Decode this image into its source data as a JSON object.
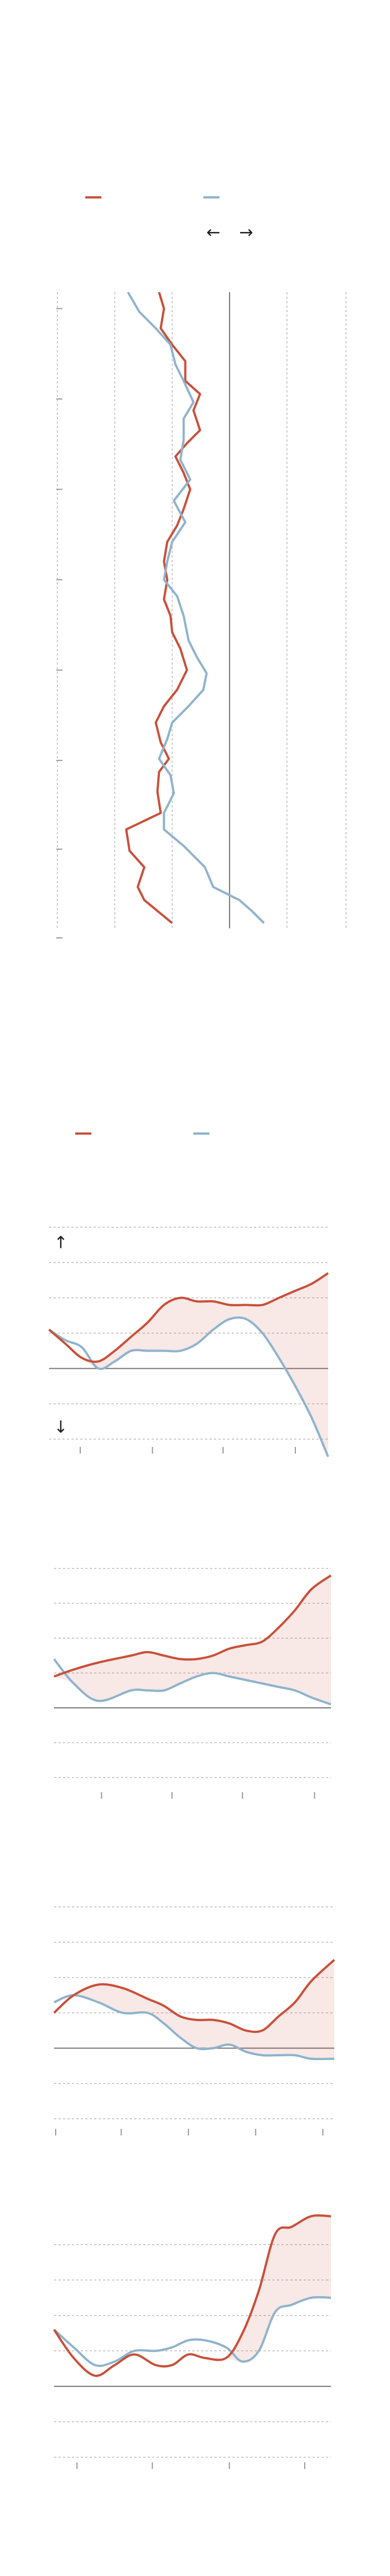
{
  "chart_data": [
    {
      "type": "line",
      "orientation": "vertical",
      "annotations": [
        "←",
        "→"
      ],
      "xlim": [
        -105,
        71
      ],
      "xticks": [
        -105,
        -70,
        -35,
        0,
        35,
        71
      ],
      "ylim": [
        178,
        572
      ],
      "yticks": [
        188,
        243,
        298,
        353,
        408,
        463,
        517,
        571
      ],
      "grid": true,
      "series": [
        {
          "color": "#c8503a",
          "values": [
            -43,
            -40,
            -42,
            -35,
            -27,
            -27,
            -18,
            -22,
            -18,
            -26,
            -33,
            -28,
            -24,
            -28,
            -32,
            -38,
            -40,
            -38,
            -40,
            -36,
            -35,
            -30,
            -26,
            -32,
            -40,
            -45,
            -42,
            -37,
            -43,
            -44,
            -42,
            -63,
            -61,
            -52,
            -56,
            -52,
            -35
          ],
          "y": [
            178,
            188,
            200,
            210,
            220,
            232,
            240,
            250,
            262,
            270,
            278,
            288,
            298,
            310,
            320,
            330,
            342,
            353,
            365,
            375,
            385,
            395,
            408,
            420,
            430,
            440,
            452,
            462,
            470,
            482,
            495,
            505,
            518,
            528,
            540,
            548,
            562
          ]
        },
        {
          "color": "#8fb3cc",
          "values": [
            -62,
            -55,
            -45,
            -36,
            -33,
            -28,
            -22,
            -28,
            -28,
            -30,
            -24,
            -34,
            -27,
            -35,
            -38,
            -40,
            -32,
            -28,
            -25,
            -20,
            -14,
            -16,
            -25,
            -35,
            -38,
            -43,
            -36,
            -34,
            -40,
            -40,
            -28,
            -15,
            -10,
            6,
            14,
            21
          ],
          "y": [
            178,
            190,
            200,
            210,
            222,
            232,
            245,
            255,
            268,
            280,
            292,
            305,
            318,
            330,
            342,
            353,
            363,
            375,
            390,
            400,
            410,
            420,
            430,
            440,
            450,
            462,
            472,
            483,
            495,
            505,
            515,
            528,
            540,
            548,
            555,
            562
          ]
        }
      ]
    },
    {
      "type": "line",
      "annotations": [
        "↑",
        "↓"
      ],
      "x": [
        30,
        40,
        50,
        60,
        70,
        80,
        90,
        100,
        110,
        120,
        130,
        140,
        150,
        160,
        170,
        180,
        190,
        200
      ],
      "xlim": [
        30,
        200
      ],
      "xticks": [
        49,
        93,
        136,
        180
      ],
      "ylim": [
        -2.6,
        4
      ],
      "yticks": [
        -2,
        -1,
        0,
        1,
        2,
        3,
        4
      ],
      "grid": true,
      "series": [
        {
          "color": "#c8503a",
          "values": [
            1.1,
            0.7,
            0.3,
            0.2,
            0.5,
            0.9,
            1.3,
            1.8,
            2.0,
            1.9,
            1.9,
            1.8,
            1.8,
            1.8,
            2.0,
            2.2,
            2.4,
            2.7
          ]
        },
        {
          "color": "#8fb3cc",
          "values": [
            1.1,
            0.8,
            0.6,
            0,
            0.2,
            0.5,
            0.5,
            0.5,
            0.5,
            0.7,
            1.1,
            1.4,
            1.4,
            1.0,
            0.3,
            -0.5,
            -1.4,
            -2.5
          ]
        }
      ]
    },
    {
      "type": "line",
      "x": [
        33,
        45,
        60,
        80,
        90,
        100,
        110,
        120,
        130,
        140,
        150,
        160,
        170,
        180,
        190,
        202
      ],
      "xlim": [
        33,
        202
      ],
      "xticks": [
        62,
        105,
        148,
        192
      ],
      "ylim": [
        -2,
        4
      ],
      "yticks": [
        -2,
        -1,
        0,
        1,
        2,
        3,
        4
      ],
      "grid": true,
      "series": [
        {
          "color": "#c8503a",
          "values": [
            0.9,
            1.1,
            1.3,
            1.5,
            1.6,
            1.5,
            1.4,
            1.4,
            1.5,
            1.7,
            1.8,
            1.9,
            2.3,
            2.8,
            3.4,
            3.8
          ]
        },
        {
          "color": "#8fb3cc",
          "values": [
            1.4,
            0.7,
            0.2,
            0.5,
            0.5,
            0.5,
            0.7,
            0.9,
            1.0,
            0.9,
            0.8,
            0.7,
            0.6,
            0.5,
            0.3,
            0.1
          ]
        }
      ]
    },
    {
      "type": "line",
      "x": [
        33,
        45,
        60,
        75,
        90,
        100,
        110,
        120,
        130,
        140,
        150,
        160,
        170,
        180,
        190,
        204
      ],
      "xlim": [
        33,
        204
      ],
      "xticks": [
        34,
        74,
        115,
        156,
        197
      ],
      "ylim": [
        -2,
        4
      ],
      "yticks": [
        -2,
        -1,
        0,
        1,
        2,
        3,
        4
      ],
      "grid": true,
      "series": [
        {
          "color": "#c8503a",
          "values": [
            1.0,
            1.5,
            1.8,
            1.7,
            1.4,
            1.2,
            0.9,
            0.8,
            0.8,
            0.7,
            0.5,
            0.5,
            0.9,
            1.3,
            1.9,
            2.5
          ]
        },
        {
          "color": "#8fb3cc",
          "values": [
            1.3,
            1.5,
            1.3,
            1.0,
            1.0,
            0.7,
            0.3,
            0,
            0,
            0.1,
            -0.1,
            -0.2,
            -0.2,
            -0.2,
            -0.3,
            -0.3
          ]
        }
      ]
    },
    {
      "type": "line",
      "x": [
        33,
        45,
        58,
        70,
        82,
        95,
        105,
        115,
        125,
        138,
        148,
        158,
        168,
        178,
        190,
        202
      ],
      "xlim": [
        33,
        202
      ],
      "xticks": [
        47,
        93,
        140,
        186
      ],
      "ylim": [
        -2,
        5
      ],
      "yticks": [
        -2,
        -1,
        0,
        1,
        2,
        3,
        4
      ],
      "grid": true,
      "series": [
        {
          "color": "#c8503a",
          "values": [
            1.6,
            0.8,
            0.3,
            0.6,
            0.9,
            0.6,
            0.6,
            0.9,
            0.8,
            0.8,
            1.5,
            2.7,
            4.3,
            4.5,
            4.8,
            4.8
          ]
        },
        {
          "color": "#8fb3cc",
          "values": [
            1.6,
            1.1,
            0.6,
            0.7,
            1.0,
            1.0,
            1.1,
            1.3,
            1.3,
            1.1,
            0.7,
            1.0,
            2.1,
            2.3,
            2.5,
            2.5
          ]
        }
      ]
    }
  ]
}
